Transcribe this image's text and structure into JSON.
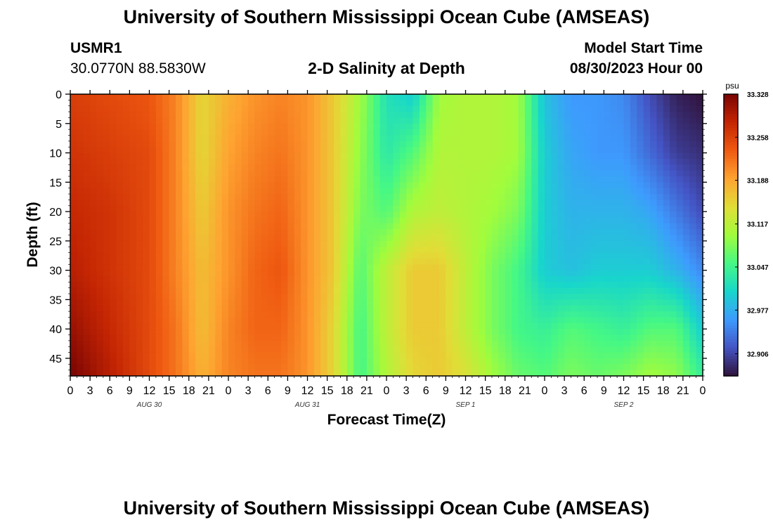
{
  "header": {
    "title": "University of Southern Mississippi Ocean Cube (AMSEAS)",
    "station_id": "USMR1",
    "coords": "30.0770N  88.5830W",
    "plot_title": "2-D Salinity at Depth",
    "model_start_label": "Model Start Time",
    "model_start_value": "08/30/2023 Hour 00"
  },
  "footer": {
    "title": "University of Southern Mississippi Ocean Cube (AMSEAS)"
  },
  "chart_data": {
    "type": "heatmap",
    "title": "2-D Salinity at Depth",
    "xlabel": "Forecast Time(Z)",
    "ylabel": "Depth (ft)",
    "x_ticks": [
      "0",
      "3",
      "6",
      "9",
      "12",
      "15",
      "18",
      "21",
      "0",
      "3",
      "6",
      "9",
      "12",
      "15",
      "18",
      "21",
      "0",
      "3",
      "6",
      "9",
      "12",
      "15",
      "18",
      "21",
      "0",
      "3",
      "6",
      "9",
      "12",
      "15",
      "18",
      "21",
      "0"
    ],
    "date_labels": [
      {
        "label": "AUG 30",
        "tick_index": 4
      },
      {
        "label": "AUG 31",
        "tick_index": 12
      },
      {
        "label": "SEP 1",
        "tick_index": 20
      },
      {
        "label": "SEP 2",
        "tick_index": 28
      }
    ],
    "y_ticks": [
      0,
      5,
      10,
      15,
      20,
      25,
      30,
      35,
      40,
      45
    ],
    "ylim": [
      0,
      48
    ],
    "xlim_hours": [
      0,
      96
    ],
    "colorbar": {
      "unit": "psu",
      "min": 32.87,
      "max": 33.328,
      "ticks": [
        "33.328",
        "33.258",
        "33.188",
        "33.117",
        "33.047",
        "32.977",
        "32.906"
      ],
      "colors": [
        "#30123b",
        "#4454c4",
        "#3e9bfe",
        "#18d6cb",
        "#46f884",
        "#a2fc3c",
        "#e1dd37",
        "#fea331",
        "#ef5a11",
        "#c42503",
        "#7a0403"
      ]
    },
    "depths": [
      0,
      10,
      20,
      30,
      40,
      48
    ],
    "hours": [
      0,
      6,
      12,
      16,
      20,
      24,
      28,
      32,
      36,
      40,
      44,
      48,
      52,
      56,
      60,
      64,
      68,
      72,
      76,
      80,
      84,
      88,
      92,
      96
    ],
    "salinity": [
      [
        33.26,
        33.25,
        33.24,
        33.21,
        33.15,
        33.18,
        33.2,
        33.21,
        33.2,
        33.16,
        33.1,
        33.02,
        33.0,
        33.1,
        33.11,
        33.11,
        33.1,
        32.99,
        32.96,
        32.96,
        32.95,
        32.91,
        32.88,
        32.87
      ],
      [
        33.27,
        33.26,
        33.25,
        33.21,
        33.15,
        33.19,
        33.21,
        33.22,
        33.2,
        33.16,
        33.09,
        33.03,
        33.06,
        33.11,
        33.11,
        33.11,
        33.1,
        33.0,
        32.97,
        32.96,
        32.96,
        32.93,
        32.9,
        32.89
      ],
      [
        33.28,
        33.27,
        33.25,
        33.21,
        33.16,
        33.2,
        33.22,
        33.23,
        33.2,
        33.16,
        33.08,
        33.06,
        33.11,
        33.12,
        33.11,
        33.1,
        33.08,
        33.0,
        32.98,
        32.98,
        32.98,
        32.97,
        32.94,
        32.91
      ],
      [
        33.29,
        33.27,
        33.25,
        33.21,
        33.17,
        33.2,
        33.23,
        33.24,
        33.2,
        33.16,
        33.06,
        33.12,
        33.16,
        33.16,
        33.12,
        33.08,
        33.05,
        33.0,
        32.99,
        33.0,
        33.0,
        33.0,
        32.98,
        32.95
      ],
      [
        33.31,
        33.28,
        33.25,
        33.22,
        33.17,
        33.21,
        33.23,
        33.23,
        33.2,
        33.15,
        33.05,
        33.12,
        33.16,
        33.16,
        33.12,
        33.08,
        33.05,
        33.04,
        33.06,
        33.05,
        33.04,
        33.06,
        33.06,
        33.0
      ],
      [
        33.33,
        33.29,
        33.25,
        33.22,
        33.18,
        33.21,
        33.22,
        33.22,
        33.2,
        33.15,
        33.05,
        33.11,
        33.15,
        33.16,
        33.14,
        33.1,
        33.07,
        33.06,
        33.08,
        33.07,
        33.08,
        33.1,
        33.09,
        33.04
      ]
    ]
  }
}
